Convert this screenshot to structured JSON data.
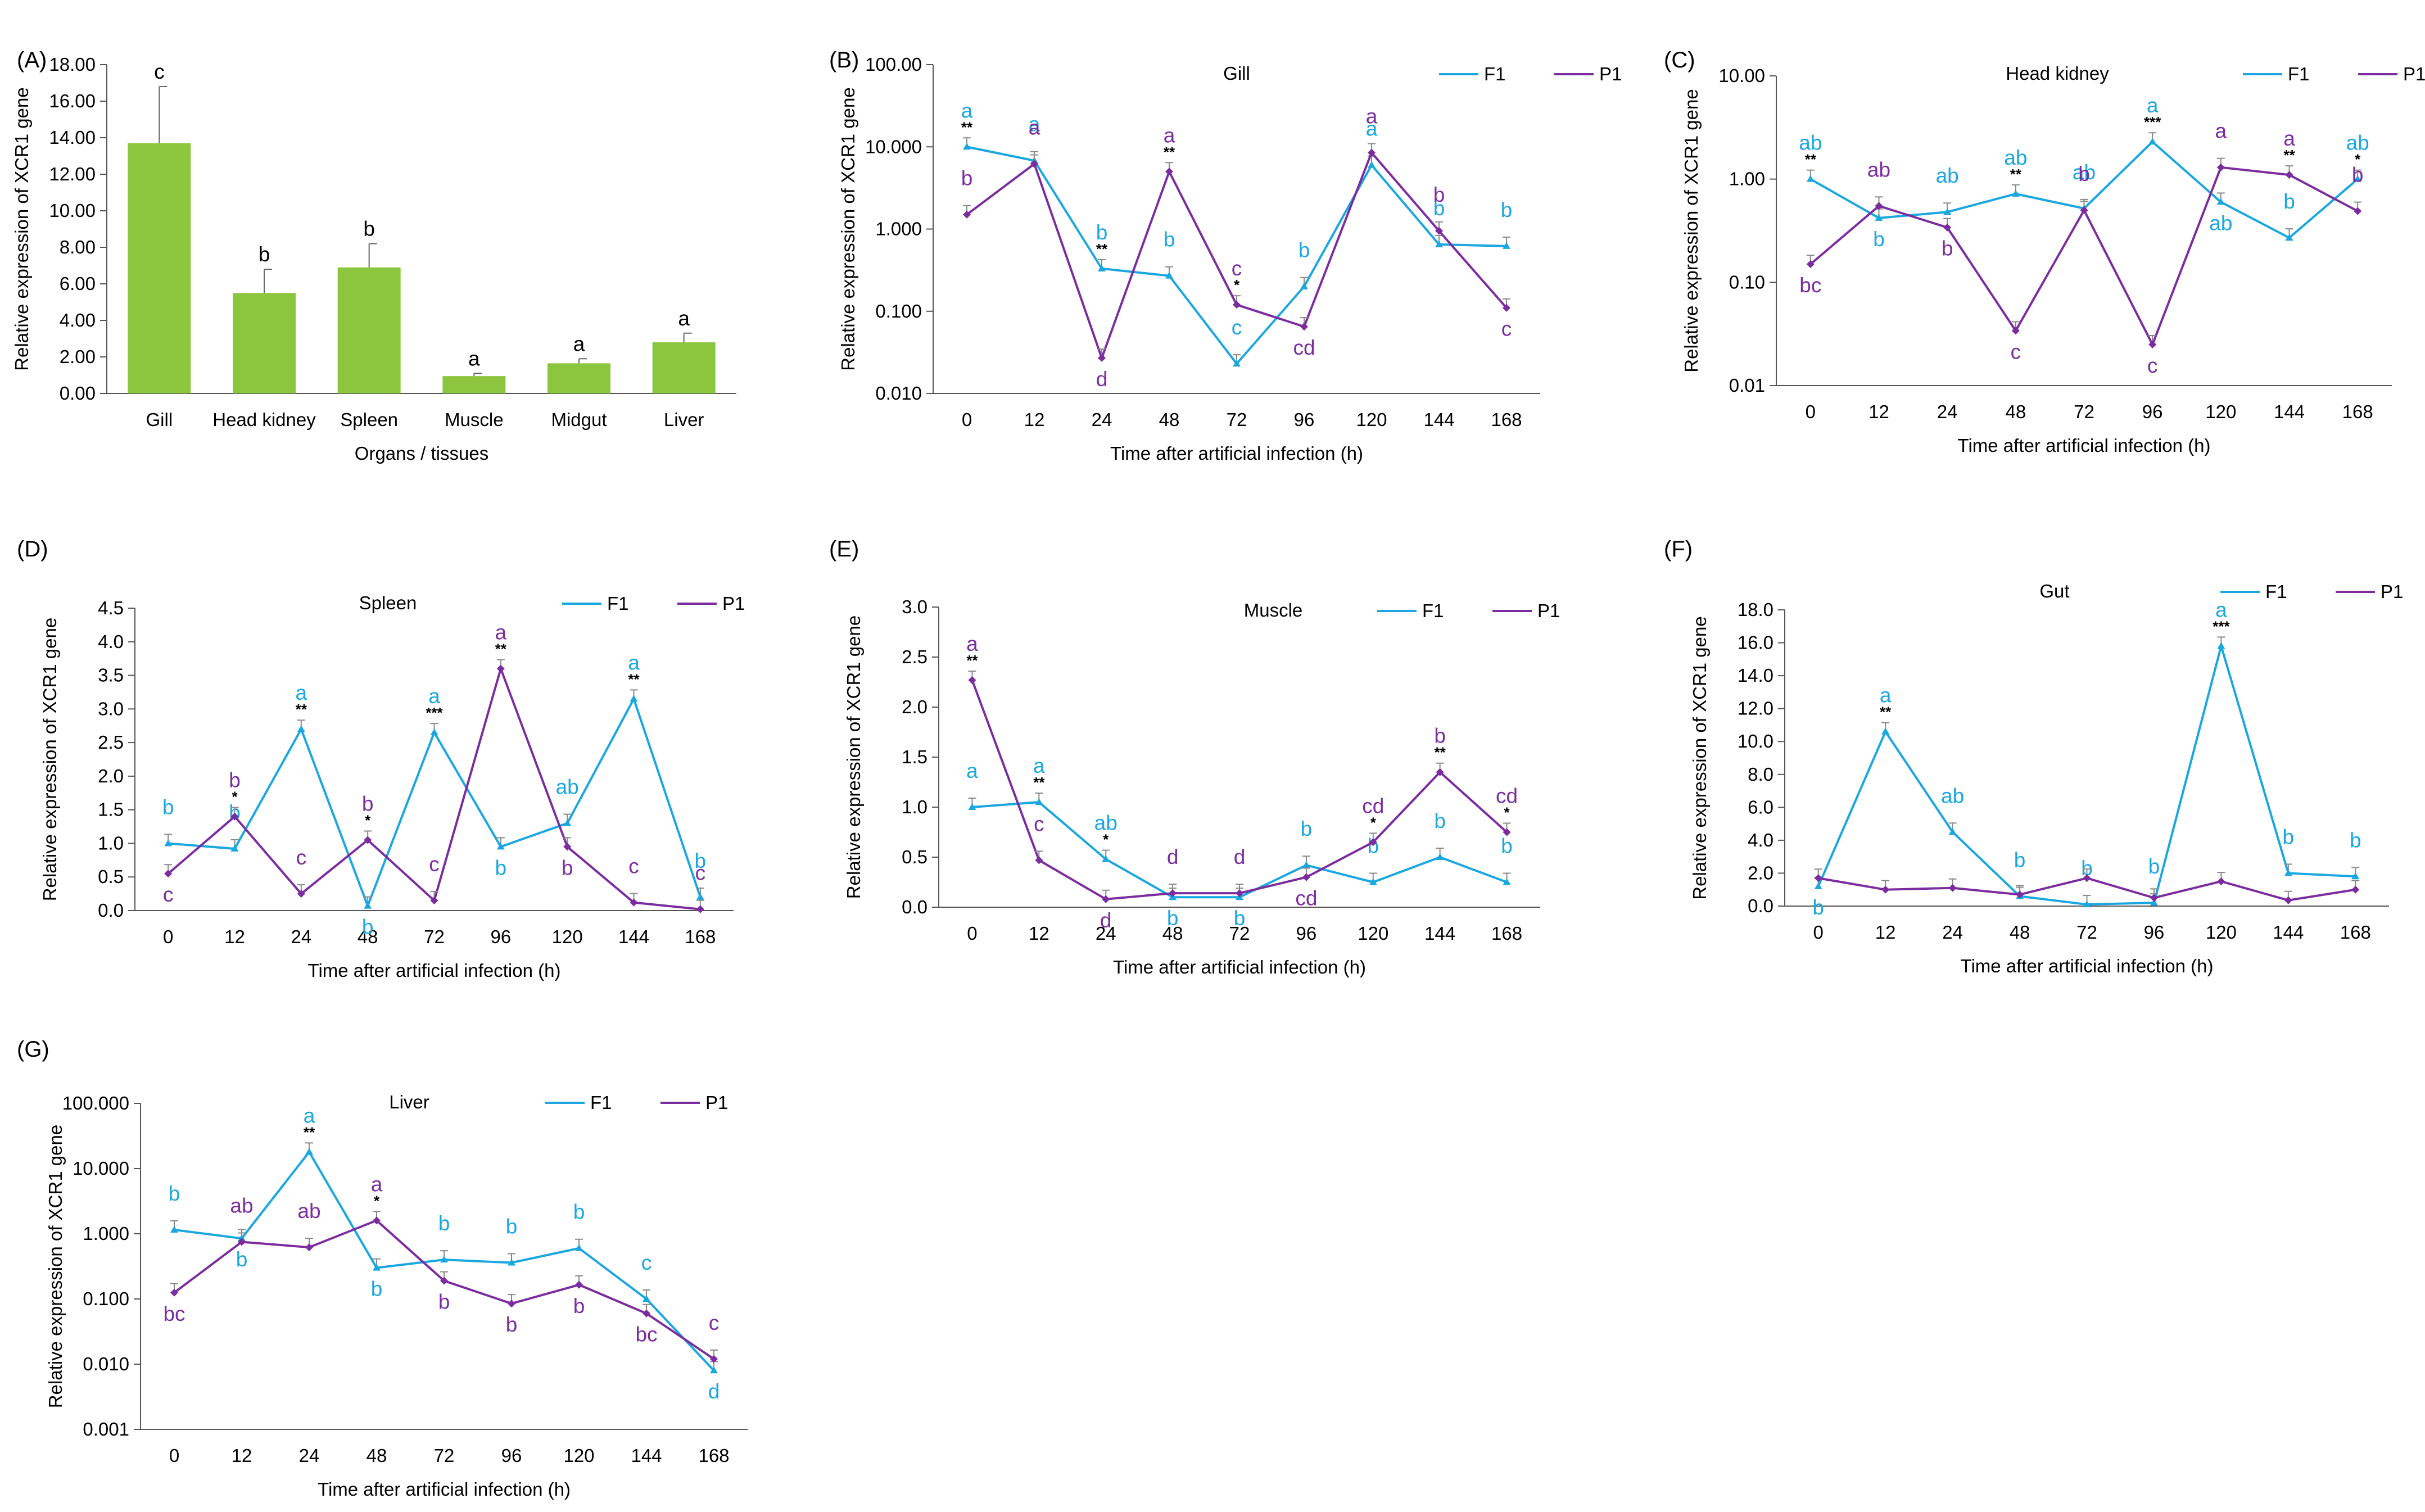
{
  "colors": {
    "bar": "#8CC63F",
    "f1": "#1AA7E0",
    "p1": "#7B2C9E",
    "axis": "#555555",
    "text": "#000000",
    "err": "#666666"
  },
  "chart_data": [
    {
      "panel": "(A)",
      "type": "bar",
      "title": "",
      "categories": [
        "Gill",
        "Head kidney",
        "Spleen",
        "Muscle",
        "Midgut",
        "Liver"
      ],
      "values": [
        13.7,
        5.5,
        6.9,
        0.95,
        1.65,
        2.8
      ],
      "errors": [
        3.1,
        1.3,
        1.3,
        0.15,
        0.25,
        0.5
      ],
      "letters": [
        "c",
        "b",
        "b",
        "a",
        "a",
        "a"
      ],
      "xlabel": "Organs / tissues",
      "ylabel": "Relative expression of XCR1 gene",
      "ylim": [
        0,
        18
      ],
      "ticks": [
        "0.00",
        "2.00",
        "4.00",
        "6.00",
        "8.00",
        "10.00",
        "12.00",
        "14.00",
        "16.00",
        "18.00"
      ]
    },
    {
      "panel": "(B)",
      "type": "line",
      "scale": "log",
      "title": "Gill",
      "x": [
        "0",
        "12",
        "24",
        "48",
        "72",
        "96",
        "120",
        "144",
        "168"
      ],
      "xlabel": "Time after artificial infection (h)",
      "ylabel": "Relative expression of XCR1 gene",
      "ylim": [
        0.01,
        100
      ],
      "ticks": [
        "0.010",
        "0.100",
        "1.000",
        "10.000",
        "100.00"
      ],
      "series": [
        {
          "name": "F1",
          "values": [
            10,
            6.8,
            0.33,
            0.27,
            0.023,
            0.2,
            6.0,
            0.65,
            0.62
          ],
          "letters": [
            "a",
            "a",
            "b",
            "b",
            "c",
            "b",
            "a",
            "b",
            "b"
          ],
          "letter_pos": [
            "above",
            "above",
            "above",
            "above",
            "above",
            "above",
            "above",
            "above",
            "above"
          ]
        },
        {
          "name": "P1",
          "values": [
            1.5,
            6.2,
            0.027,
            5.0,
            0.12,
            0.065,
            8.5,
            0.95,
            0.11
          ],
          "letters": [
            "b",
            "a",
            "d",
            "a",
            "c",
            "cd",
            "a",
            "b",
            "c"
          ],
          "letter_pos": [
            "above",
            "above",
            "below",
            "above",
            "above",
            "below",
            "above",
            "above",
            "below"
          ]
        }
      ],
      "stars": [
        "**",
        "",
        "**",
        "**",
        "*",
        "",
        "",
        "",
        ""
      ]
    },
    {
      "panel": "(C)",
      "type": "line",
      "scale": "log",
      "title": "Head kidney",
      "x": [
        "0",
        "12",
        "24",
        "48",
        "72",
        "96",
        "120",
        "144",
        "168"
      ],
      "xlabel": "Time after artificial infection (h)",
      "ylabel": "Relative expression of XCR1 gene",
      "ylim": [
        0.01,
        10
      ],
      "ticks": [
        "0.01",
        "0.10",
        "1.00",
        "10.00"
      ],
      "series": [
        {
          "name": "F1",
          "values": [
            1.0,
            0.42,
            0.48,
            0.72,
            0.52,
            2.3,
            0.6,
            0.27,
            1.0
          ],
          "letters": [
            "ab",
            "b",
            "ab",
            "ab",
            "ab",
            "a",
            "ab",
            "b",
            "ab"
          ],
          "letter_pos": [
            "above",
            "below",
            "above",
            "above",
            "above",
            "above",
            "below",
            "above",
            "above"
          ]
        },
        {
          "name": "P1",
          "values": [
            0.15,
            0.55,
            0.34,
            0.034,
            0.5,
            0.025,
            1.3,
            1.1,
            0.49
          ],
          "letters": [
            "bc",
            "ab",
            "b",
            "c",
            "b",
            "c",
            "a",
            "a",
            "b"
          ],
          "letter_pos": [
            "below",
            "above",
            "below",
            "below",
            "above",
            "below",
            "above",
            "above",
            "above"
          ]
        }
      ],
      "stars": [
        "**",
        "",
        "",
        "**",
        "",
        "***",
        "",
        "**",
        "*"
      ]
    },
    {
      "panel": "(D)",
      "type": "line",
      "scale": "linear",
      "title": "Spleen",
      "x": [
        "0",
        "12",
        "24",
        "48",
        "72",
        "96",
        "120",
        "144",
        "168"
      ],
      "xlabel": "Time after artificial infection (h)",
      "ylabel": "Relative expression of XCR1 gene",
      "ylim": [
        0,
        4.5
      ],
      "ticks": [
        "0.0",
        "0.5",
        "1.0",
        "1.5",
        "2.0",
        "2.5",
        "3.0",
        "3.5",
        "4.0",
        "4.5"
      ],
      "series": [
        {
          "name": "F1",
          "values": [
            1.0,
            0.92,
            2.7,
            0.07,
            2.65,
            0.95,
            1.3,
            3.15,
            0.2
          ],
          "letters": [
            "b",
            "b",
            "a",
            "b",
            "a",
            "b",
            "ab",
            "a",
            "b"
          ],
          "letter_pos": [
            "above",
            "above",
            "above",
            "below",
            "above",
            "below",
            "above",
            "above",
            "above"
          ]
        },
        {
          "name": "P1",
          "values": [
            0.55,
            1.4,
            0.25,
            1.05,
            0.15,
            3.6,
            0.95,
            0.12,
            0.02
          ],
          "letters": [
            "c",
            "b",
            "c",
            "b",
            "c",
            "a",
            "b",
            "c",
            "c"
          ],
          "letter_pos": [
            "below",
            "above",
            "above",
            "above",
            "above",
            "above",
            "below",
            "above",
            "above"
          ]
        }
      ],
      "stars": [
        "",
        "*",
        "**",
        "*",
        "***",
        "**",
        "",
        "**",
        ""
      ]
    },
    {
      "panel": "(E)",
      "type": "line",
      "scale": "linear",
      "title": "Muscle",
      "x": [
        "0",
        "12",
        "24",
        "48",
        "72",
        "96",
        "120",
        "144",
        "168"
      ],
      "xlabel": "Time after artificial infection (h)",
      "ylabel": "Relative expression of XCR1 gene",
      "ylim": [
        0,
        3.0
      ],
      "ticks": [
        "0.0",
        "0.5",
        "1.0",
        "1.5",
        "2.0",
        "2.5",
        "3.0"
      ],
      "series": [
        {
          "name": "F1",
          "values": [
            1.0,
            1.05,
            0.48,
            0.1,
            0.1,
            0.42,
            0.25,
            0.5,
            0.25
          ],
          "letters": [
            "a",
            "a",
            "ab",
            "b",
            "b",
            "b",
            "b",
            "b",
            "b"
          ],
          "letter_pos": [
            "above",
            "above",
            "above",
            "below",
            "below",
            "above",
            "above",
            "above",
            "above"
          ]
        },
        {
          "name": "P1",
          "values": [
            2.27,
            0.47,
            0.08,
            0.14,
            0.14,
            0.3,
            0.65,
            1.35,
            0.75
          ],
          "letters": [
            "a",
            "c",
            "d",
            "d",
            "d",
            "cd",
            "cd",
            "b",
            "cd"
          ],
          "letter_pos": [
            "above",
            "above",
            "below",
            "above",
            "above",
            "below",
            "above",
            "above",
            "above"
          ]
        }
      ],
      "stars": [
        "**",
        "**",
        "*",
        "",
        "",
        "",
        "*",
        "**",
        "*"
      ]
    },
    {
      "panel": "(F)",
      "type": "line",
      "scale": "linear",
      "title": "Gut",
      "x": [
        "0",
        "12",
        "24",
        "48",
        "72",
        "96",
        "120",
        "144",
        "168"
      ],
      "xlabel": "Time after artificial infection (h)",
      "ylabel": "Relative expression of XCR1 gene",
      "ylim": [
        0,
        18
      ],
      "ticks": [
        "0.0",
        "2.0",
        "4.0",
        "6.0",
        "8.0",
        "10.0",
        "12.0",
        "14.0",
        "16.0",
        "18.0"
      ],
      "series": [
        {
          "name": "F1",
          "values": [
            1.2,
            10.6,
            4.5,
            0.6,
            0.1,
            0.2,
            15.8,
            2.0,
            1.8
          ],
          "letters": [
            "b",
            "a",
            "ab",
            "b",
            "b",
            "b",
            "a",
            "b",
            "b"
          ],
          "letter_pos": [
            "below",
            "above",
            "above",
            "above",
            "above",
            "above",
            "above",
            "above",
            "above"
          ]
        },
        {
          "name": "P1",
          "values": [
            1.7,
            1.0,
            1.1,
            0.7,
            1.7,
            0.5,
            1.5,
            0.35,
            1.0
          ],
          "letters": [
            "",
            "",
            "",
            "",
            "",
            "",
            "",
            "",
            ""
          ],
          "letter_pos": [
            "above",
            "above",
            "above",
            "above",
            "above",
            "above",
            "above",
            "above",
            "above"
          ]
        }
      ],
      "stars": [
        "",
        "**",
        "",
        "",
        "",
        "",
        "***",
        "",
        ""
      ]
    },
    {
      "panel": "(G)",
      "type": "line",
      "scale": "log",
      "title": "Liver",
      "x": [
        "0",
        "12",
        "24",
        "48",
        "72",
        "96",
        "120",
        "144",
        "168"
      ],
      "xlabel": "Time after artificial infection (h)",
      "ylabel": "Relative expression of XCR1 gene",
      "ylim": [
        0.001,
        100
      ],
      "ticks": [
        "0.001",
        "0.010",
        "0.100",
        "1.000",
        "10.000",
        "100.000"
      ],
      "series": [
        {
          "name": "F1",
          "values": [
            1.15,
            0.85,
            18.0,
            0.3,
            0.4,
            0.36,
            0.6,
            0.1,
            0.008
          ],
          "letters": [
            "b",
            "b",
            "a",
            "b",
            "b",
            "b",
            "b",
            "c",
            "d"
          ],
          "letter_pos": [
            "above",
            "below",
            "above",
            "below",
            "above",
            "above",
            "above",
            "above",
            "below"
          ]
        },
        {
          "name": "P1",
          "values": [
            0.125,
            0.75,
            0.62,
            1.6,
            0.19,
            0.085,
            0.165,
            0.06,
            0.012
          ],
          "letters": [
            "bc",
            "ab",
            "ab",
            "a",
            "b",
            "b",
            "b",
            "bc",
            "c"
          ],
          "letter_pos": [
            "below",
            "above",
            "above",
            "above",
            "below",
            "below",
            "below",
            "below",
            "above"
          ]
        }
      ],
      "stars": [
        "",
        "",
        "**",
        "*",
        "",
        "",
        "",
        "",
        ""
      ]
    }
  ]
}
